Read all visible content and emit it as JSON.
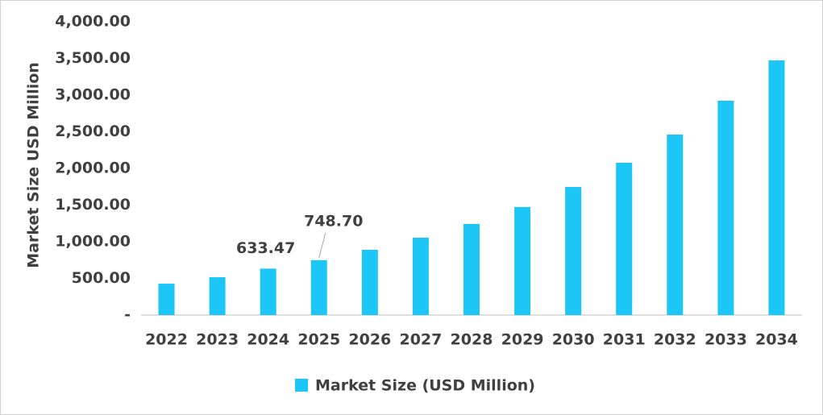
{
  "chart_data": {
    "type": "bar",
    "y_axis_label": "Market Size USD Million",
    "categories": [
      "2022",
      "2023",
      "2024",
      "2025",
      "2026",
      "2027",
      "2028",
      "2029",
      "2030",
      "2031",
      "2032",
      "2033",
      "2034"
    ],
    "series": [
      {
        "name": "Market Size (USD Million)",
        "color": "#1cc6f6",
        "values": [
          428,
          516,
          633.47,
          748.7,
          890,
          1055,
          1242,
          1473,
          1747,
          2077,
          2462,
          2923,
          3473
        ],
        "value_labels": [
          null,
          null,
          "633.47",
          "748.70",
          null,
          null,
          null,
          null,
          null,
          null,
          null,
          null,
          null
        ]
      }
    ],
    "ylim": [
      0,
      4000
    ],
    "yticks": [
      {
        "value": 0,
        "label": "-"
      },
      {
        "value": 500,
        "label": "500.00"
      },
      {
        "value": 1000,
        "label": "1,000.00"
      },
      {
        "value": 1500,
        "label": "1,500.00"
      },
      {
        "value": 2000,
        "label": "2,000.00"
      },
      {
        "value": 2500,
        "label": "2,500.00"
      },
      {
        "value": 3000,
        "label": "3,000.00"
      },
      {
        "value": 3500,
        "label": "3,500.00"
      },
      {
        "value": 4000,
        "label": "4,000.00"
      }
    ],
    "legend": "bottom"
  }
}
